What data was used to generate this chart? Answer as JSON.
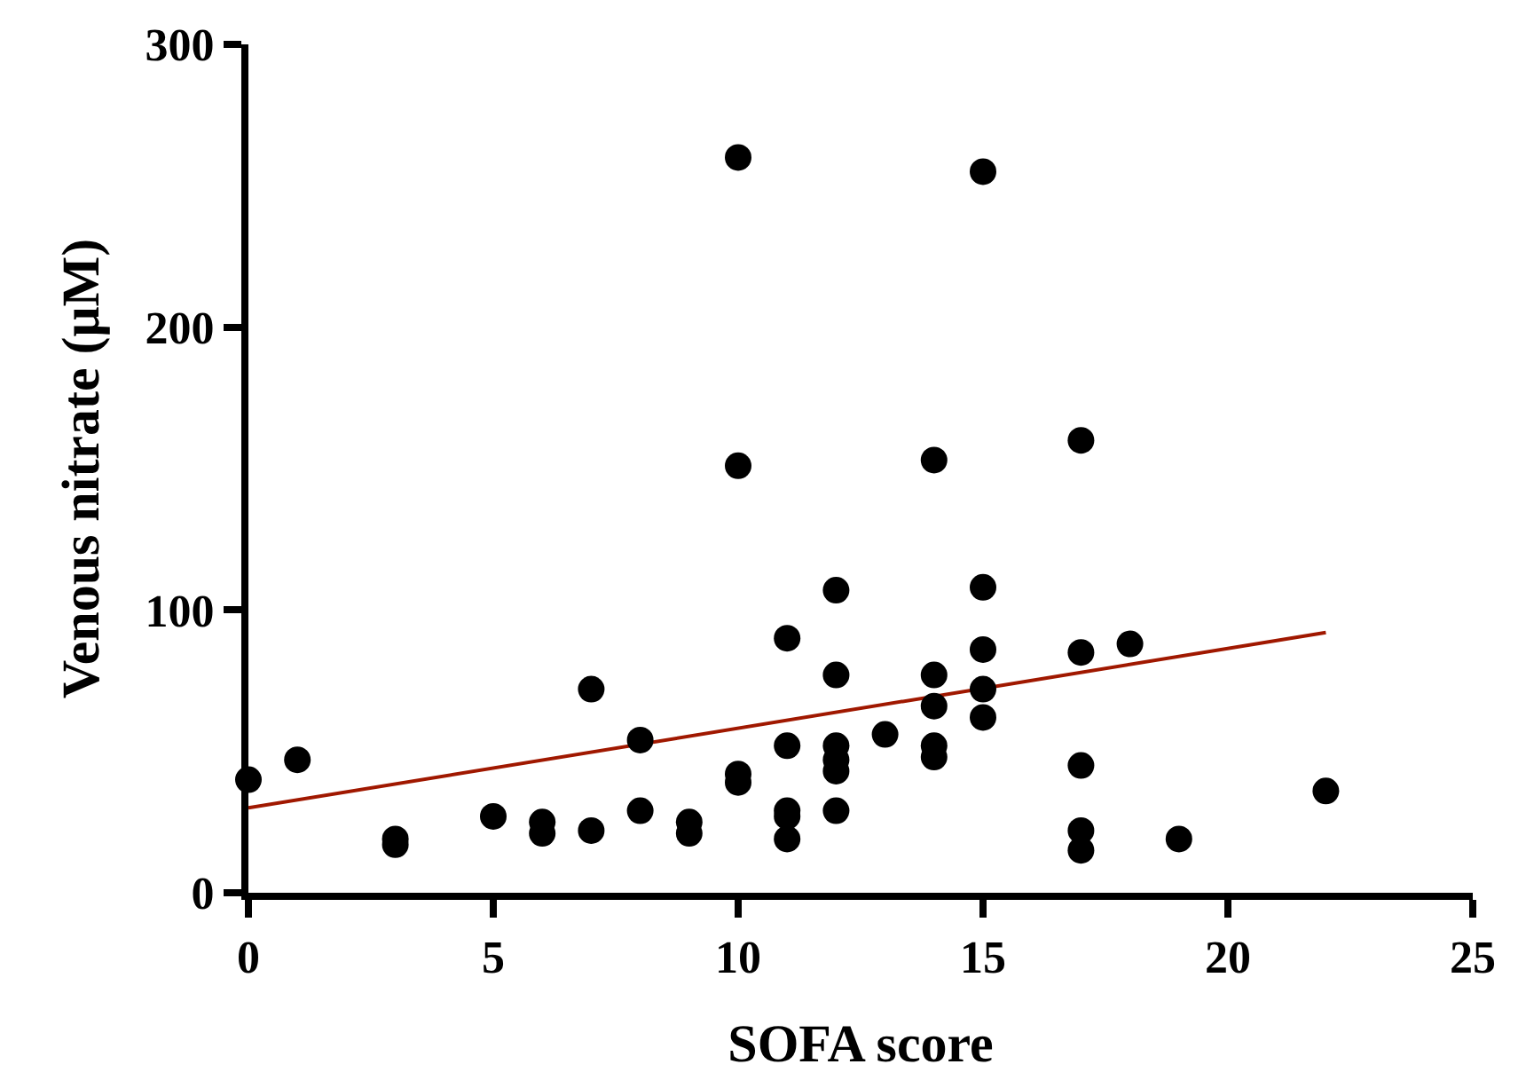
{
  "chart_data": {
    "type": "scatter",
    "xlabel": "SOFA score",
    "ylabel": "Venous nitrate (μM)",
    "xlim": [
      0,
      25
    ],
    "xticks": [
      0,
      5,
      10,
      15,
      20,
      25
    ],
    "ylim": [
      0,
      300
    ],
    "yticks": [
      0,
      100,
      200,
      300
    ],
    "grid": false,
    "marker": "circle",
    "series": [
      {
        "color": "#000000",
        "x": [
          0,
          1,
          3,
          3,
          5,
          6,
          6,
          7,
          7,
          8,
          8,
          9,
          9,
          10,
          10,
          10,
          10,
          11,
          11,
          11,
          11,
          11,
          12,
          12,
          12,
          12,
          12,
          12,
          13,
          14,
          14,
          14,
          14,
          14,
          15,
          15,
          15,
          15,
          15,
          17,
          17,
          17,
          17,
          17,
          18,
          19,
          22
        ],
        "values": [
          40,
          47,
          17,
          19,
          27,
          25,
          21,
          72,
          22,
          54,
          29,
          25,
          21,
          260,
          151,
          42,
          39,
          90,
          52,
          29,
          27,
          19,
          107,
          77,
          52,
          47,
          43,
          29,
          56,
          153,
          77,
          66,
          52,
          48,
          255,
          108,
          86,
          72,
          62,
          160,
          85,
          45,
          22,
          15,
          88,
          19,
          36
        ]
      },
      {
        "type": "line",
        "color": "#a01800",
        "line_style": "solid",
        "marker": "none",
        "x": [
          0,
          22
        ],
        "values": [
          30,
          92
        ]
      }
    ]
  }
}
